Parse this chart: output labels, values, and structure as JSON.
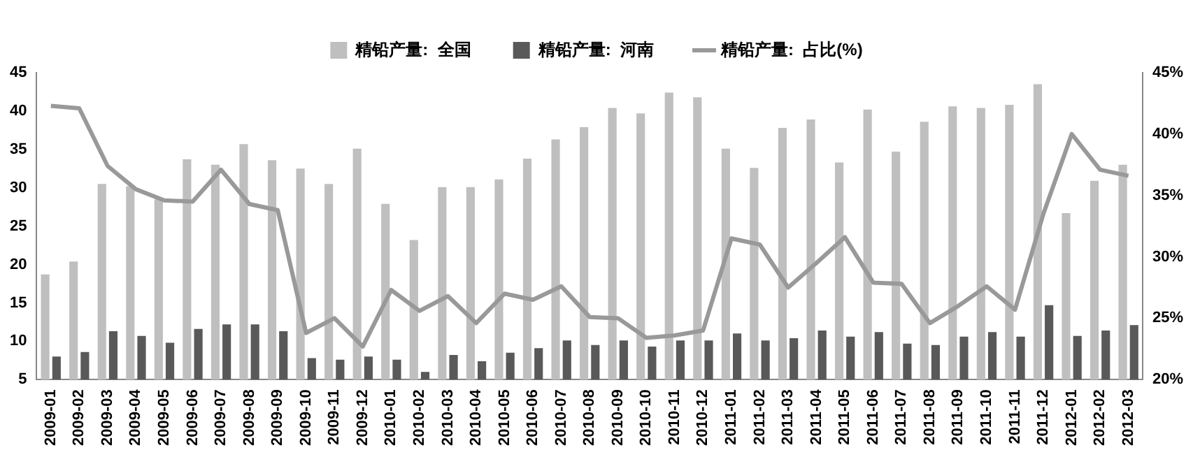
{
  "chart_data": {
    "type": "bar",
    "legend": "top",
    "grid": false,
    "categories": [
      "2009-01",
      "2009-02",
      "2009-03",
      "2009-04",
      "2009-05",
      "2009-06",
      "2009-07",
      "2009-08",
      "2009-09",
      "2009-10",
      "2009-11",
      "2009-12",
      "2010-01",
      "2010-02",
      "2010-03",
      "2010-04",
      "2010-05",
      "2010-06",
      "2010-07",
      "2010-08",
      "2010-09",
      "2010-10",
      "2010-11",
      "2010-12",
      "2011-01",
      "2011-02",
      "2011-03",
      "2011-04",
      "2011-05",
      "2011-06",
      "2011-07",
      "2011-08",
      "2011-09",
      "2011-10",
      "2011-11",
      "2011-12",
      "2012-01",
      "2012-02",
      "2012-03"
    ],
    "ylim": [
      5,
      45
    ],
    "yticks": [
      5,
      10,
      15,
      20,
      25,
      30,
      35,
      40,
      45
    ],
    "y2lim": [
      20,
      45
    ],
    "y2ticks": [
      {
        "value": 20,
        "label": "20%"
      },
      {
        "value": 25,
        "label": "25%"
      },
      {
        "value": 30,
        "label": "30%"
      },
      {
        "value": 35,
        "label": "35%"
      },
      {
        "value": 40,
        "label": "40%"
      },
      {
        "value": 45,
        "label": "45%"
      }
    ],
    "series": [
      {
        "name": "精铅产量:  全国",
        "color": "#bfbfbf",
        "values": [
          18.7,
          20.4,
          30.5,
          30.2,
          28.5,
          33.7,
          33,
          35.7,
          33.6,
          32.5,
          30.5,
          35.1,
          27.9,
          23.2,
          30.1,
          30.1,
          31.1,
          33.8,
          36.3,
          37.9,
          40.4,
          39.7,
          42.4,
          41.8,
          35.1,
          32.6,
          37.8,
          38.9,
          33.3,
          40.2,
          34.7,
          38.6,
          40.6,
          40.4,
          40.8,
          43.5,
          26.7,
          30.9,
          33
        ]
      },
      {
        "name": "精铅产量:  河南",
        "color": "#595959",
        "values": [
          8,
          8.6,
          11.3,
          10.7,
          9.8,
          11.6,
          12.2,
          12.2,
          11.3,
          7.8,
          7.6,
          8,
          7.6,
          6,
          8.2,
          7.4,
          8.5,
          9.1,
          10.1,
          9.5,
          10.1,
          9.3,
          10.1,
          10.1,
          11,
          10.1,
          10.4,
          11.4,
          10.6,
          11.2,
          9.7,
          9.5,
          10.6,
          11.2,
          10.6,
          14.7,
          10.7,
          11.4,
          12.1
        ]
      },
      {
        "name": "精铅产量:  占比(%)",
        "type": "line",
        "axis": "y2",
        "color": "#999999",
        "values": [
          42.3,
          42.1,
          37.4,
          35.5,
          34.6,
          34.5,
          37.1,
          34.3,
          33.8,
          23.8,
          25,
          22.7,
          27.3,
          25.6,
          26.8,
          24.6,
          27,
          26.5,
          27.6,
          25.1,
          25,
          23.4,
          23.6,
          24,
          31.5,
          31,
          27.5,
          29.5,
          31.6,
          27.9,
          27.8,
          24.6,
          26,
          27.6,
          25.7,
          33.5,
          40,
          37.1,
          36.6
        ]
      }
    ]
  }
}
